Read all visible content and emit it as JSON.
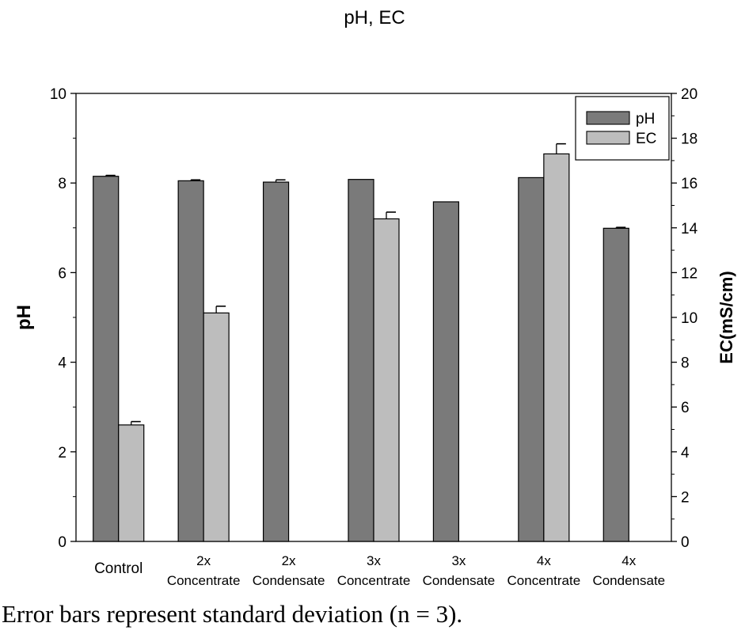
{
  "chart_data": {
    "type": "bar",
    "title": "pH, EC",
    "xlabel": "",
    "ylabel": "pH",
    "y2label": "EC(mS/cm)",
    "ylim": [
      0,
      10
    ],
    "y2lim": [
      0,
      20
    ],
    "yticks": [
      "0",
      "2",
      "4",
      "6",
      "8",
      "10"
    ],
    "y2ticks": [
      "0",
      "2",
      "4",
      "6",
      "8",
      "10",
      "12",
      "14",
      "16",
      "18",
      "20"
    ],
    "categories": [
      {
        "line1": "Control",
        "line2": ""
      },
      {
        "line1": "2x",
        "line2": "Concentrate"
      },
      {
        "line1": "2x",
        "line2": "Condensate"
      },
      {
        "line1": "3x",
        "line2": "Concentrate"
      },
      {
        "line1": "3x",
        "line2": "Condensate"
      },
      {
        "line1": "4x",
        "line2": "Concentrate"
      },
      {
        "line1": "4x",
        "line2": "Condensate"
      }
    ],
    "series": [
      {
        "name": "pH",
        "axis": "left",
        "color": "#7a7a7a",
        "values": [
          8.15,
          8.05,
          8.02,
          8.08,
          7.58,
          8.12,
          6.99
        ],
        "errors": [
          0.02,
          0.02,
          0.05,
          0,
          0,
          0,
          0.02
        ]
      },
      {
        "name": "EC",
        "axis": "right",
        "color": "#bdbdbd",
        "values": [
          5.2,
          10.2,
          null,
          14.4,
          null,
          17.3,
          null
        ],
        "errors": [
          0.15,
          0.3,
          null,
          0.3,
          null,
          0.45,
          null
        ]
      }
    ],
    "legend": "top-right",
    "grid": false
  },
  "caption": "Error bars represent standard deviation (n = 3)."
}
